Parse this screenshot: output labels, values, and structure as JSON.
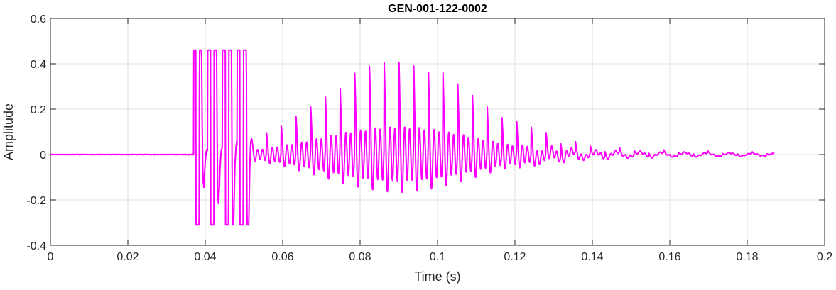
{
  "chart_data": {
    "type": "line",
    "title": "GEN-001-122-0002",
    "xlabel": "Time (s)",
    "ylabel": "Amplitude",
    "xlim": [
      0,
      0.2
    ],
    "ylim": [
      -0.4,
      0.6
    ],
    "xticks": [
      0,
      0.02,
      0.04,
      0.06,
      0.08,
      0.1,
      0.12,
      0.14,
      0.16,
      0.18,
      0.2
    ],
    "xtick_labels": [
      "0",
      "0.02",
      "0.04",
      "0.06",
      "0.08",
      "0.1",
      "0.12",
      "0.14",
      "0.16",
      "0.18",
      "0.2"
    ],
    "yticks": [
      -0.4,
      -0.2,
      0,
      0.2,
      0.4,
      0.6
    ],
    "ytick_labels": [
      "-0.4",
      "-0.2",
      "0",
      "0.2",
      "0.4",
      "0.6"
    ],
    "grid": true,
    "legend": "none",
    "line_color": "#ff00ff",
    "series": [
      {
        "x_start": 0,
        "x_end": 0.187,
        "onset": 0.037,
        "envelope_peak_time": 0.09,
        "peak_max": 0.46,
        "trough_min": -0.31,
        "pitch_period": 0.0038
      }
    ]
  }
}
